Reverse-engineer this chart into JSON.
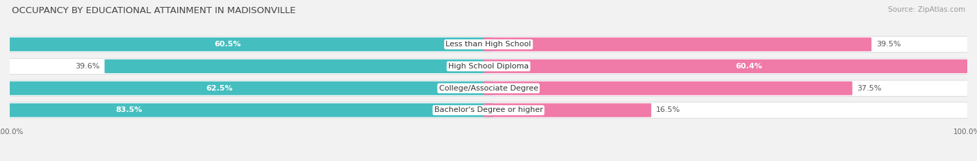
{
  "title": "OCCUPANCY BY EDUCATIONAL ATTAINMENT IN MADISONVILLE",
  "source": "Source: ZipAtlas.com",
  "categories": [
    "Less than High School",
    "High School Diploma",
    "College/Associate Degree",
    "Bachelor's Degree or higher"
  ],
  "owner_values": [
    60.5,
    39.6,
    62.5,
    83.5
  ],
  "renter_values": [
    39.5,
    60.4,
    37.5,
    16.5
  ],
  "owner_color": "#45bec0",
  "renter_color": "#f07aa8",
  "bar_height": 0.62,
  "background_color": "#f2f2f2",
  "bar_bg_color": "#ffffff",
  "title_fontsize": 9.5,
  "label_fontsize": 8.0,
  "value_fontsize": 8.0,
  "tick_fontsize": 7.5,
  "source_fontsize": 7.5
}
